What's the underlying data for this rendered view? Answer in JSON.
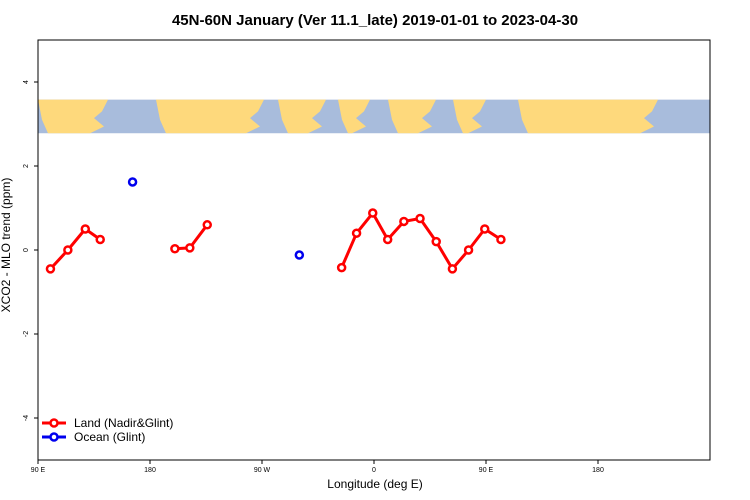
{
  "chart_data": {
    "type": "line",
    "title": "45N-60N January (Ver 11.1_late)   2019-01-01 to 2023-04-30",
    "xlabel": "Longitude (deg E)",
    "ylabel": "XCO2 - MLO trend (ppm)",
    "xlim": [
      -90,
      180
    ],
    "ylim": [
      -5,
      5
    ],
    "x_center": "180 (dateline centered, x axis spans 90 E through 180 to 180)",
    "x_ticks": [
      {
        "value": -90,
        "label": "90 E"
      },
      {
        "value": -45,
        "label": "180"
      },
      {
        "value": 0,
        "label": "90 W"
      },
      {
        "value": 45,
        "label": "0"
      },
      {
        "value": 90,
        "label": "90 E"
      },
      {
        "value": 135,
        "label": "180"
      }
    ],
    "y_ticks": [
      {
        "value": -4,
        "label": "-4"
      },
      {
        "value": -2,
        "label": "-2"
      },
      {
        "value": 0,
        "label": "0"
      },
      {
        "value": 2,
        "label": "2"
      },
      {
        "value": 4,
        "label": "4"
      }
    ],
    "map_band": {
      "ymin": 2.78,
      "ymax": 3.58,
      "ocean_color": "#a8bcdc",
      "land_color": "#fed97c"
    },
    "legend_position": "bottom-left",
    "series": [
      {
        "name": "Land (Nadir&Glint)",
        "color": "#ff0000",
        "segments": [
          [
            [
              -85,
              -0.45
            ],
            [
              -78,
              0.0
            ],
            [
              -71,
              0.5
            ],
            [
              -65,
              0.25
            ]
          ],
          [
            [
              -35,
              0.03
            ],
            [
              -29,
              0.05
            ],
            [
              -22,
              0.6
            ]
          ],
          [
            [
              32,
              -0.42
            ],
            [
              38,
              0.4
            ],
            [
              44.5,
              0.88
            ],
            [
              50.5,
              0.25
            ],
            [
              57,
              0.68
            ],
            [
              63.5,
              0.75
            ],
            [
              70,
              0.2
            ],
            [
              76.5,
              -0.45
            ],
            [
              83,
              0.0
            ],
            [
              89.5,
              0.5
            ],
            [
              96,
              0.25
            ]
          ]
        ]
      },
      {
        "name": "Ocean (Glint)",
        "color": "#0000ee",
        "segments": [
          [
            [
              -52,
              1.62
            ]
          ],
          [
            [
              15,
              -0.12
            ]
          ]
        ]
      }
    ]
  }
}
